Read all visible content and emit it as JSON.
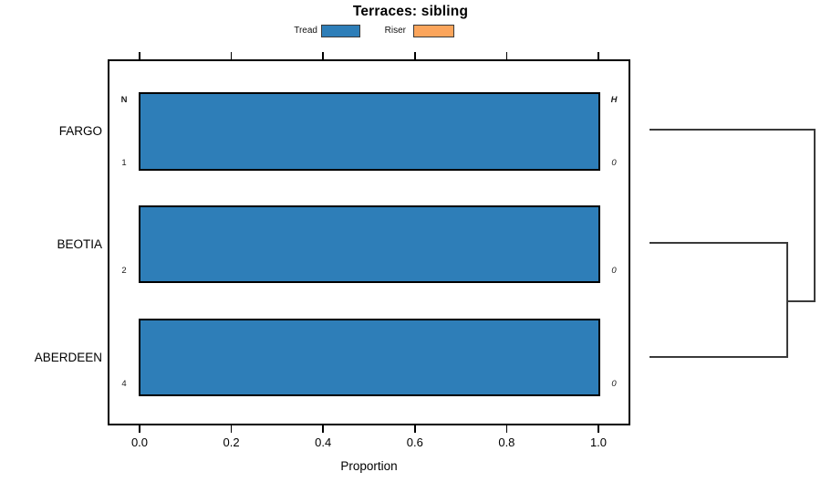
{
  "title": "Terraces: sibling",
  "legend": {
    "items": [
      {
        "label": "Tread",
        "color": "#2E7EB8"
      },
      {
        "label": "Riser",
        "color": "#FBA55C"
      }
    ]
  },
  "chart_data": {
    "type": "bar",
    "orientation": "horizontal",
    "title": "Terraces: sibling",
    "xlabel": "Proportion",
    "xlim": [
      0,
      1
    ],
    "grid": false,
    "legend_position": "top-center",
    "xticks": [
      {
        "value": 0.0,
        "label": "0.0"
      },
      {
        "value": 0.2,
        "label": "0.2"
      },
      {
        "value": 0.4,
        "label": "0.4"
      },
      {
        "value": 0.6,
        "label": "0.6"
      },
      {
        "value": 0.8,
        "label": "0.8"
      },
      {
        "value": 1.0,
        "label": "1.0"
      }
    ],
    "categories": [
      "FARGO",
      "BEOTIA",
      "ABERDEEN"
    ],
    "series": [
      {
        "name": "Tread",
        "color": "#2E7EB8",
        "values": [
          1.0,
          1.0,
          1.0
        ]
      },
      {
        "name": "Riser",
        "color": "#FBA55C",
        "values": [
          0.0,
          0.0,
          0.0
        ]
      }
    ],
    "annotations": {
      "left_header": "N",
      "left_values": [
        "1",
        "2",
        "4"
      ],
      "right_header": "H",
      "right_values": [
        "0",
        "0",
        "0"
      ]
    },
    "dendrogram": {
      "structure_newick": "((BEOTIA,ABERDEEN),FARGO);",
      "description": "right-side cluster tree: BEOTIA and ABERDEEN merge first, then join FARGO"
    }
  }
}
